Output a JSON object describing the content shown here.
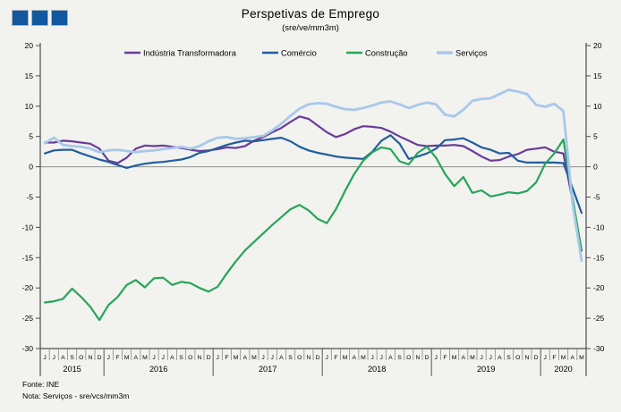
{
  "header": {
    "title": "Perspetivas de Emprego",
    "subtitle": "(sre/ve/mm3m)"
  },
  "logo": {
    "square_count": 3,
    "color": "#11589e"
  },
  "footer": {
    "source": "Fonte: INE",
    "note": "Nota: Serviços - sre/vcs/mm3m"
  },
  "chart_data": {
    "type": "line",
    "title": "Perspetivas de Emprego",
    "subtitle": "(sre/ve/mm3m)",
    "ylim": [
      -30,
      20
    ],
    "yticks": [
      20,
      15,
      10,
      5,
      0,
      -5,
      -10,
      -15,
      -20,
      -25,
      -30
    ],
    "grid": false,
    "zero_line": true,
    "legend_position": "top",
    "x_month_labels": [
      "J",
      "J",
      "A",
      "S",
      "O",
      "N",
      "D",
      "J",
      "F",
      "M",
      "A",
      "M",
      "J",
      "J",
      "A",
      "S",
      "O",
      "N",
      "D",
      "J",
      "F",
      "M",
      "A",
      "M",
      "J",
      "J",
      "A",
      "S",
      "O",
      "N",
      "D",
      "J",
      "F",
      "M",
      "A",
      "M",
      "J",
      "J",
      "A",
      "S",
      "O",
      "N",
      "D",
      "J",
      "F",
      "M",
      "A",
      "M",
      "J",
      "J",
      "A",
      "S",
      "O",
      "N",
      "D",
      "J",
      "F",
      "M",
      "A",
      "M"
    ],
    "year_groups": [
      {
        "label": "2015",
        "count": 7
      },
      {
        "label": "2016",
        "count": 12
      },
      {
        "label": "2017",
        "count": 12
      },
      {
        "label": "2018",
        "count": 12
      },
      {
        "label": "2019",
        "count": 12
      },
      {
        "label": "2020",
        "count": 5
      }
    ],
    "series": [
      {
        "name": "Indústria Transformadora",
        "color": "#6a3d99",
        "values": [
          4.0,
          4.0,
          4.3,
          4.2,
          4.0,
          3.8,
          3.0,
          1.0,
          0.6,
          1.5,
          3.0,
          3.5,
          3.4,
          3.5,
          3.3,
          3.1,
          2.8,
          2.6,
          2.7,
          2.9,
          3.2,
          3.1,
          3.4,
          4.3,
          4.9,
          5.7,
          6.4,
          7.4,
          8.3,
          7.9,
          6.8,
          5.7,
          4.9,
          5.4,
          6.2,
          6.7,
          6.6,
          6.4,
          5.8,
          5.0,
          4.3,
          3.6,
          3.4,
          3.5,
          3.5,
          3.6,
          3.4,
          2.6,
          1.7,
          1.0,
          1.1,
          1.7,
          2.1,
          2.8,
          3.0,
          3.2,
          2.5,
          2.2,
          -5.5,
          -13.8
        ]
      },
      {
        "name": "Comércio",
        "color": "#215e9e",
        "values": [
          2.2,
          2.7,
          2.8,
          2.8,
          2.2,
          1.7,
          1.2,
          0.8,
          0.3,
          -0.2,
          0.2,
          0.5,
          0.7,
          0.8,
          1.0,
          1.2,
          1.6,
          2.3,
          2.6,
          3.1,
          3.6,
          4.0,
          4.3,
          4.2,
          4.4,
          4.6,
          4.8,
          4.2,
          3.3,
          2.7,
          2.3,
          2.0,
          1.7,
          1.5,
          1.4,
          1.3,
          2.5,
          4.3,
          5.2,
          3.8,
          1.3,
          1.7,
          2.2,
          3.0,
          4.4,
          4.5,
          4.7,
          4.0,
          3.2,
          2.8,
          2.2,
          2.3,
          1.0,
          0.7,
          0.7,
          0.7,
          0.7,
          0.6,
          -3.5,
          -7.6
        ]
      },
      {
        "name": "Construção",
        "color": "#26a55a",
        "values": [
          -22.4,
          -22.2,
          -21.8,
          -20.1,
          -21.5,
          -23.1,
          -25.3,
          -22.8,
          -21.5,
          -19.5,
          -18.7,
          -19.9,
          -18.4,
          -18.3,
          -19.5,
          -19.0,
          -19.2,
          -20.0,
          -20.6,
          -19.8,
          -17.6,
          -15.6,
          -13.8,
          -12.4,
          -11.0,
          -9.6,
          -8.3,
          -7.0,
          -6.3,
          -7.2,
          -8.6,
          -9.3,
          -7.0,
          -4.0,
          -1.2,
          1.0,
          2.4,
          3.2,
          2.9,
          0.9,
          0.4,
          2.3,
          3.3,
          1.5,
          -1.2,
          -3.2,
          -1.7,
          -4.3,
          -3.9,
          -4.9,
          -4.6,
          -4.2,
          -4.4,
          -4.0,
          -2.6,
          0.5,
          2.2,
          4.5,
          -5.0,
          -13.9
        ]
      },
      {
        "name": "Serviços",
        "color": "#a8c8ea",
        "values": [
          3.9,
          4.8,
          3.6,
          3.4,
          3.3,
          3.0,
          2.4,
          2.7,
          2.8,
          2.6,
          2.4,
          2.6,
          2.7,
          2.9,
          3.1,
          3.3,
          3.0,
          3.4,
          4.2,
          4.8,
          4.9,
          4.6,
          4.7,
          4.9,
          5.1,
          6.0,
          7.1,
          8.4,
          9.6,
          10.3,
          10.5,
          10.4,
          9.9,
          9.5,
          9.4,
          9.7,
          10.1,
          10.6,
          10.8,
          10.3,
          9.7,
          10.2,
          10.6,
          10.3,
          8.6,
          8.3,
          9.4,
          10.9,
          11.2,
          11.3,
          12.0,
          12.7,
          12.4,
          12.0,
          10.2,
          9.9,
          10.4,
          9.2,
          -6.0,
          -15.5
        ]
      }
    ]
  }
}
